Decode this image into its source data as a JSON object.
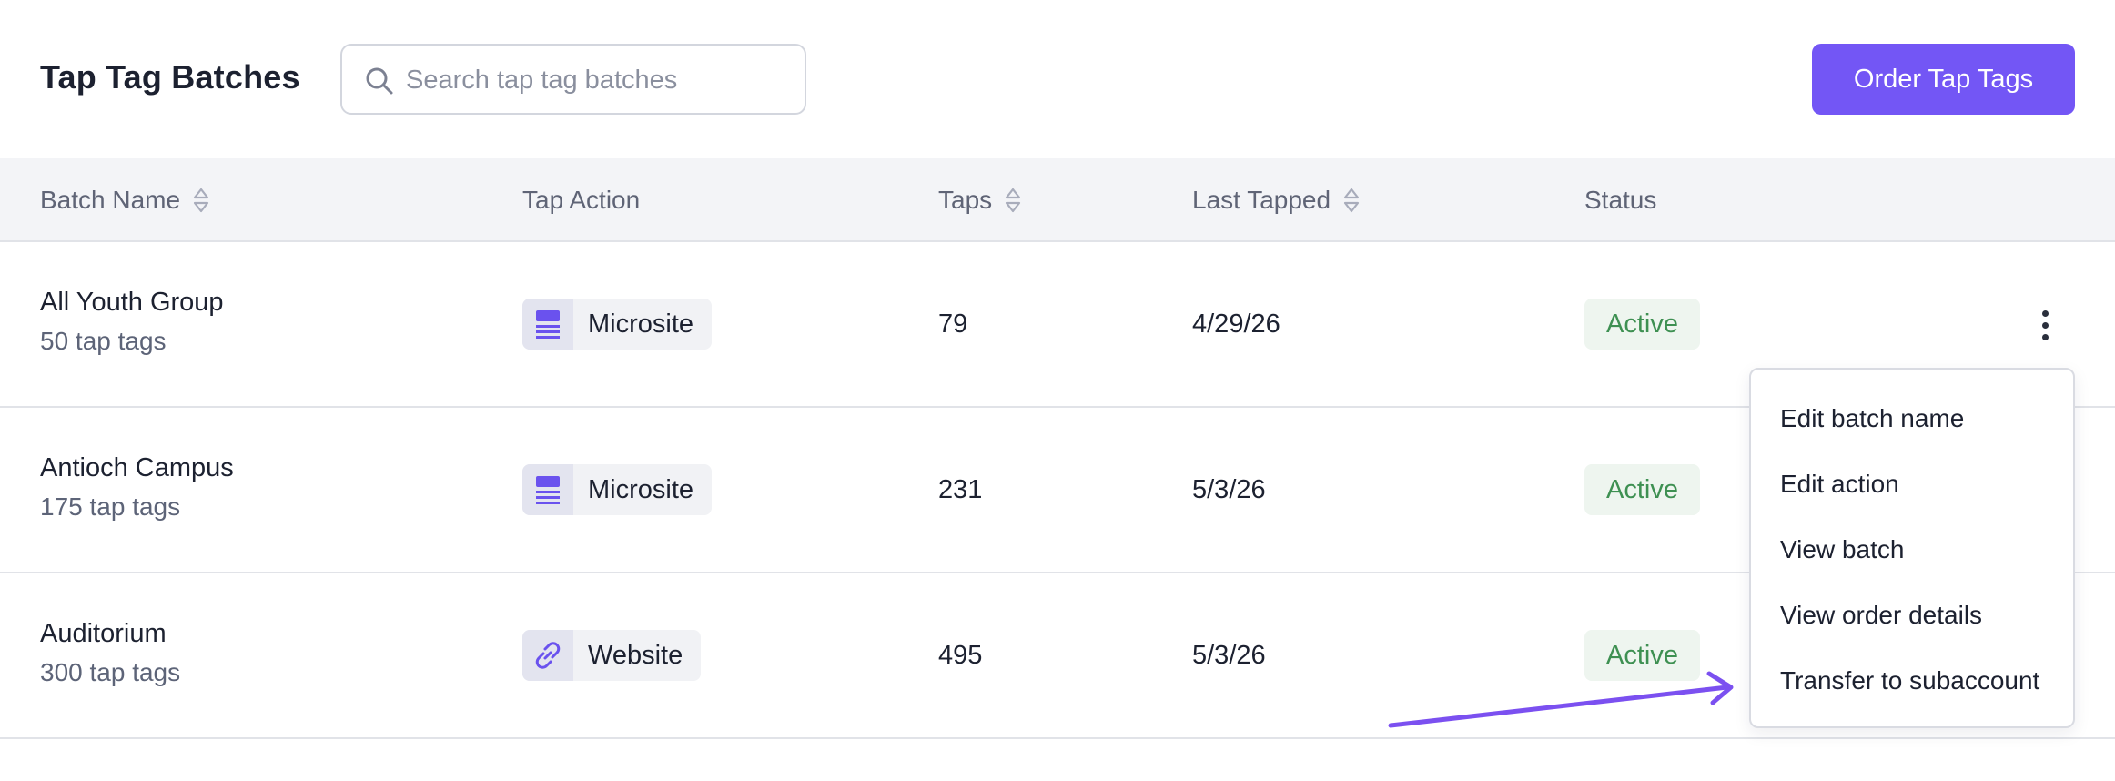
{
  "header": {
    "title": "Tap Tag Batches",
    "search_placeholder": "Search tap tag batches",
    "order_button": "Order Tap Tags"
  },
  "table": {
    "columns": [
      {
        "label": "Batch Name",
        "sortable": true
      },
      {
        "label": "Tap Action",
        "sortable": false
      },
      {
        "label": "Taps",
        "sortable": true
      },
      {
        "label": "Last Tapped",
        "sortable": true
      },
      {
        "label": "Status",
        "sortable": false
      }
    ],
    "rows": [
      {
        "name": "All Youth Group",
        "count": "50 tap tags",
        "action": "Microsite",
        "action_icon": "microsite-icon",
        "taps": "79",
        "last_tapped": "4/29/26",
        "status": "Active"
      },
      {
        "name": "Antioch Campus",
        "count": "175 tap tags",
        "action": "Microsite",
        "action_icon": "microsite-icon",
        "taps": "231",
        "last_tapped": "5/3/26",
        "status": "Active"
      },
      {
        "name": "Auditorium",
        "count": "300 tap tags",
        "action": "Website",
        "action_icon": "link-icon",
        "taps": "495",
        "last_tapped": "5/3/26",
        "status": "Active"
      }
    ]
  },
  "row_menu": {
    "items": [
      "Edit batch name",
      "Edit action",
      "View batch",
      "View order details",
      "Transfer to subaccount"
    ]
  },
  "colors": {
    "accent": "#7356f5",
    "status_active_text": "#3e9052",
    "status_active_bg": "#eef5ef",
    "arrow": "#7b50f0"
  }
}
